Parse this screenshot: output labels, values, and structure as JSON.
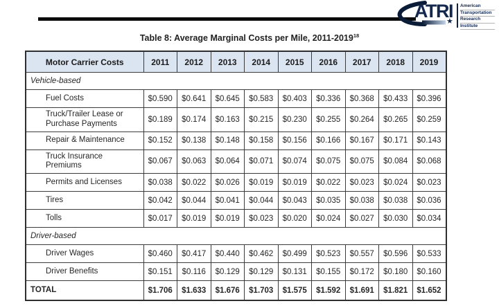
{
  "logo": {
    "acronym": "ATRI",
    "star_icon": "★",
    "org_lines": [
      "American",
      "Transportation",
      "Research",
      "Institute"
    ]
  },
  "title": {
    "text": "Table 8: Average Marginal Costs per Mile, 2011-2019",
    "footnote_ref": "18"
  },
  "table": {
    "header": {
      "label": "Motor Carrier Costs",
      "years": [
        "2011",
        "2012",
        "2013",
        "2014",
        "2015",
        "2016",
        "2017",
        "2018",
        "2019"
      ]
    },
    "sections": [
      {
        "name": "Vehicle-based",
        "rows": [
          {
            "label": "Fuel Costs",
            "values": [
              "$0.590",
              "$0.641",
              "$0.645",
              "$0.583",
              "$0.403",
              "$0.336",
              "$0.368",
              "$0.433",
              "$0.396"
            ]
          },
          {
            "label": "Truck/Trailer Lease or Purchase Payments",
            "values": [
              "$0.189",
              "$0.174",
              "$0.163",
              "$0.215",
              "$0.230",
              "$0.255",
              "$0.264",
              "$0.265",
              "$0.259"
            ]
          },
          {
            "label": "Repair & Maintenance",
            "values": [
              "$0.152",
              "$0.138",
              "$0.148",
              "$0.158",
              "$0.156",
              "$0.166",
              "$0.167",
              "$0.171",
              "$0.143"
            ]
          },
          {
            "label": "Truck Insurance Premiums",
            "values": [
              "$0.067",
              "$0.063",
              "$0.064",
              "$0.071",
              "$0.074",
              "$0.075",
              "$0.075",
              "$0.084",
              "$0.068"
            ]
          },
          {
            "label": "Permits and Licenses",
            "values": [
              "$0.038",
              "$0.022",
              "$0.026",
              "$0.019",
              "$0.019",
              "$0.022",
              "$0.023",
              "$0.024",
              "$0.023"
            ]
          },
          {
            "label": "Tires",
            "values": [
              "$0.042",
              "$0.044",
              "$0.041",
              "$0.044",
              "$0.043",
              "$0.035",
              "$0.038",
              "$0.038",
              "$0.036"
            ]
          },
          {
            "label": "Tolls",
            "values": [
              "$0.017",
              "$0.019",
              "$0.019",
              "$0.023",
              "$0.020",
              "$0.024",
              "$0.027",
              "$0.030",
              "$0.034"
            ]
          }
        ]
      },
      {
        "name": "Driver-based",
        "rows": [
          {
            "label": "Driver Wages",
            "values": [
              "$0.460",
              "$0.417",
              "$0.440",
              "$0.462",
              "$0.499",
              "$0.523",
              "$0.557",
              "$0.596",
              "$0.533"
            ]
          },
          {
            "label": "Driver Benefits",
            "values": [
              "$0.151",
              "$0.116",
              "$0.129",
              "$0.129",
              "$0.131",
              "$0.155",
              "$0.172",
              "$0.180",
              "$0.160"
            ]
          }
        ]
      }
    ],
    "total": {
      "label": "TOTAL",
      "values": [
        "$1.706",
        "$1.633",
        "$1.676",
        "$1.703",
        "$1.575",
        "$1.592",
        "$1.691",
        "$1.821",
        "$1.652"
      ]
    }
  },
  "colors": {
    "header_bg": "#dbe5f1",
    "border": "#3a3a3a",
    "brand_navy": "#14284e",
    "title_text": "#222222"
  }
}
